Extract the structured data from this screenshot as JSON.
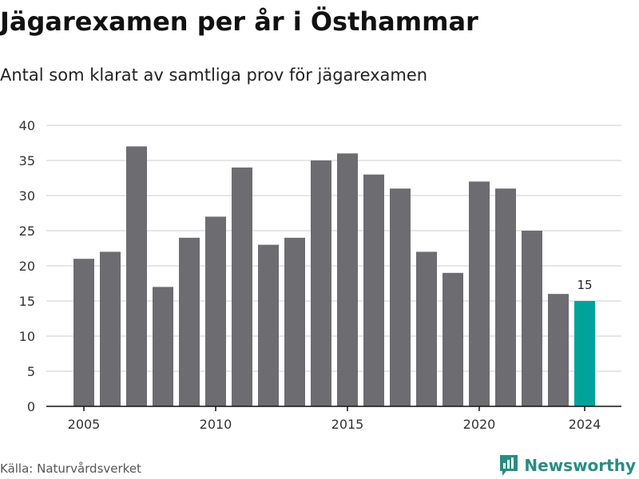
{
  "header": {
    "title": "Jägarexamen per år i Östhammar",
    "subtitle": "Antal som klarat av samtliga prov för jägarexamen"
  },
  "footer": {
    "source": "Källa: Naturvårdsverket",
    "brand": "Newsworthy",
    "brand_icon": "bar-chart-speech-bubble-icon"
  },
  "colors": {
    "bar": "#6d6c71",
    "highlight": "#00a39b",
    "grid": "#dddddd",
    "axis": "#111111",
    "tick_text": "#333333",
    "brand": "#2a8c84"
  },
  "chart_data": {
    "type": "bar",
    "categories": [
      2005,
      2006,
      2007,
      2008,
      2009,
      2010,
      2011,
      2012,
      2013,
      2014,
      2015,
      2016,
      2017,
      2018,
      2019,
      2020,
      2021,
      2022,
      2023,
      2024
    ],
    "values": [
      21,
      22,
      37,
      17,
      24,
      27,
      34,
      23,
      24,
      35,
      36,
      33,
      31,
      22,
      19,
      32,
      31,
      25,
      16,
      15
    ],
    "x_tick_labels": [
      "2005",
      "2010",
      "2015",
      "2020",
      "2024"
    ],
    "y_ticks": [
      0,
      5,
      10,
      15,
      20,
      25,
      30,
      35,
      40
    ],
    "ylim": [
      0,
      40
    ],
    "grid": true,
    "highlight": {
      "category": 2024,
      "label": "15"
    },
    "title": "Jägarexamen per år i Östhammar",
    "xlabel": "",
    "ylabel": ""
  }
}
